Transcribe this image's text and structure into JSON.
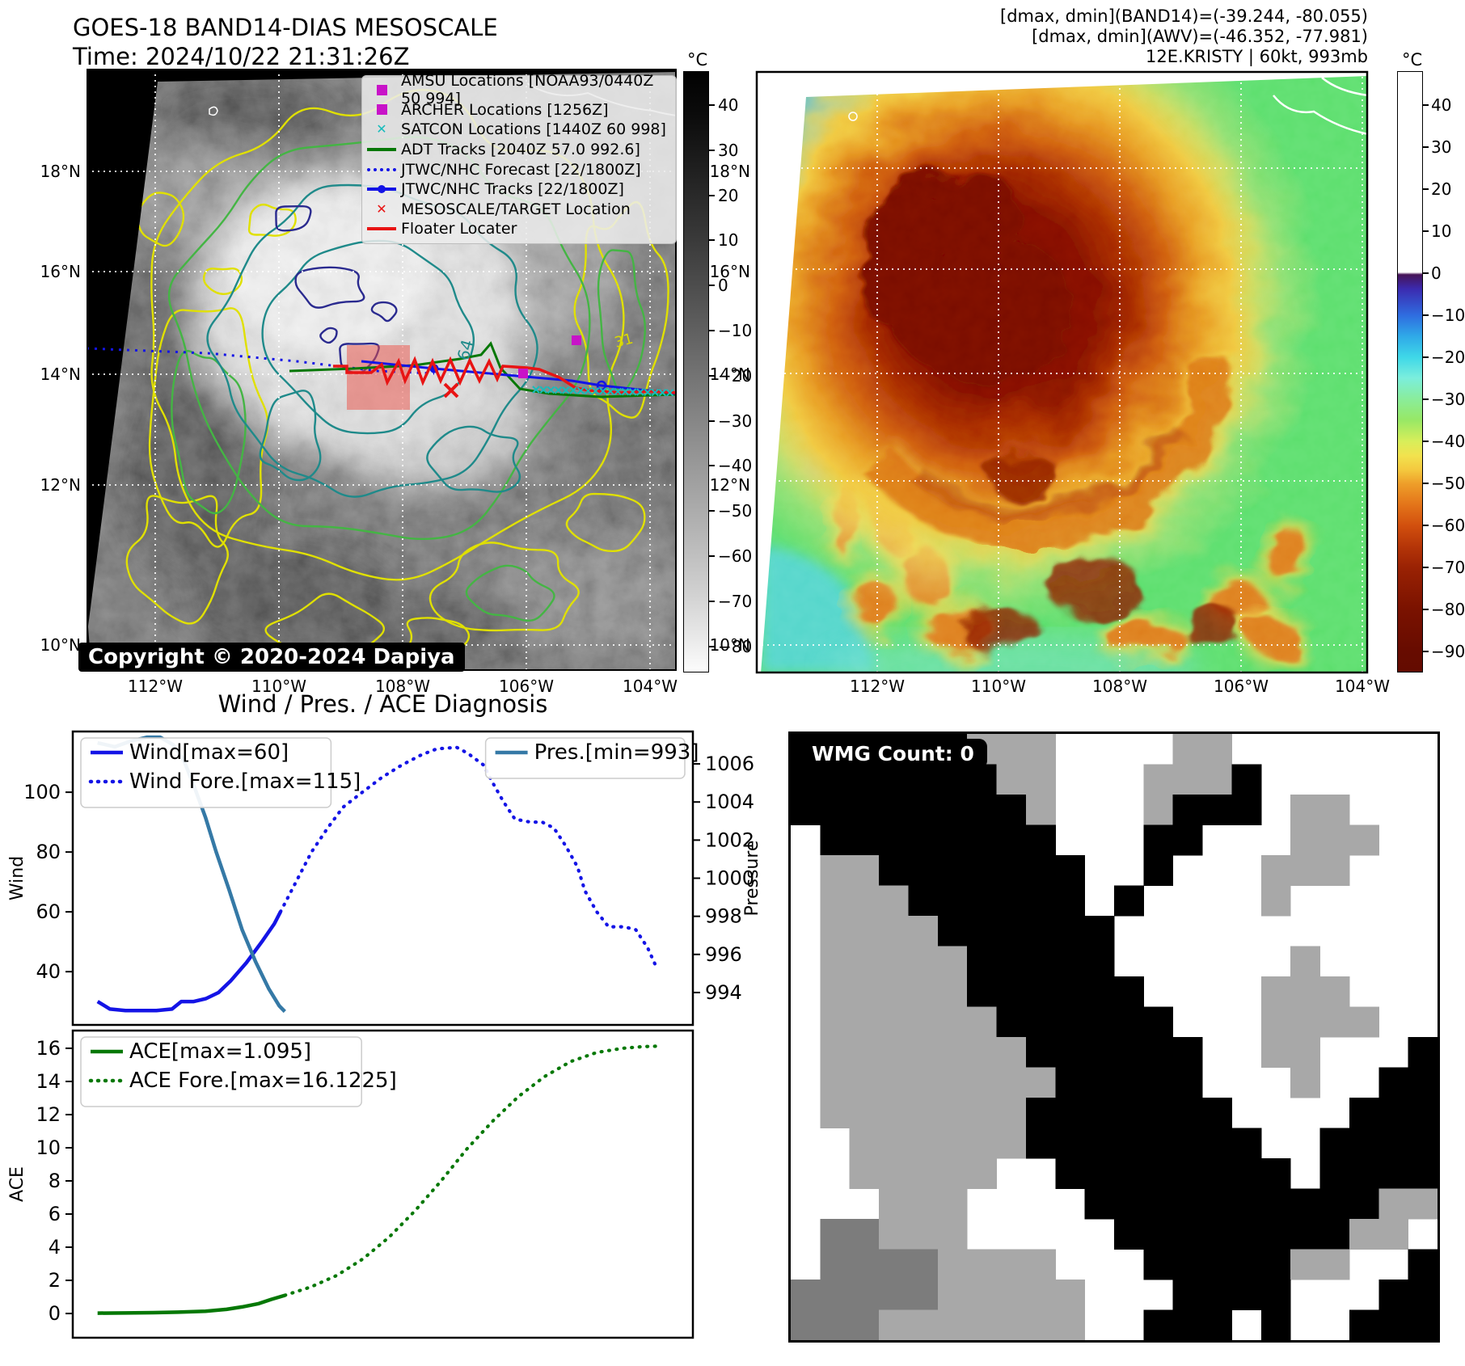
{
  "header_left": {
    "line1": "GOES-18 BAND14-DIAS MESOSCALE",
    "line2": "Time: 2024/10/22 21:31:26Z"
  },
  "header_right": {
    "line1": "[dmax, dmin](BAND14)=(-39.244, -80.055)",
    "line2": "[dmax, dmin](AWV)=(-46.352, -77.981)",
    "line3": "12E.KRISTY | 60kt, 993mb"
  },
  "map_left": {
    "copyright": "Copyright © 2020-2024 Dapiya",
    "lat_ticks": [
      "18°N",
      "16°N",
      "14°N",
      "12°N",
      "10°N"
    ],
    "lon_ticks": [
      "112°W",
      "110°W",
      "108°W",
      "106°W",
      "104°W"
    ],
    "contour_labels": [
      "64",
      "31"
    ],
    "colorbar": {
      "unit": "°C",
      "ticks": [
        "40",
        "30",
        "20",
        "10",
        "0",
        "−10",
        "−20",
        "−30",
        "−40",
        "−50",
        "−60",
        "−70",
        "−80"
      ]
    },
    "legend": [
      {
        "marker": "square",
        "color": "#c813c8",
        "label": "AMSU Locations [NOAA93/0440Z 50 994]"
      },
      {
        "marker": "square",
        "color": "#c813c8",
        "label": "ARCHER Locations [1256Z]"
      },
      {
        "marker": "cross",
        "color": "#17bcbc",
        "label": "SATCON Locations [1440Z 60 998]"
      },
      {
        "marker": "line",
        "color": "#067806",
        "label": "ADT Tracks [2040Z 57.0 992.6]"
      },
      {
        "marker": "dotted",
        "color": "#1414e6",
        "label": "JTWC/NHC Forecast [22/1800Z]"
      },
      {
        "marker": "line-dot",
        "color": "#1414e6",
        "label": "JTWC/NHC Tracks [22/1800Z]"
      },
      {
        "marker": "cross",
        "color": "#e81414",
        "label": "MESOSCALE/TARGET Location"
      },
      {
        "marker": "line",
        "color": "#e81414",
        "label": "Floater Locater"
      }
    ]
  },
  "map_right": {
    "lat_ticks": [
      "18°N",
      "16°N",
      "14°N",
      "12°N",
      "10°N"
    ],
    "lon_ticks": [
      "112°W",
      "110°W",
      "108°W",
      "106°W",
      "104°W"
    ],
    "colorbar": {
      "unit": "°C",
      "ticks": [
        "40",
        "30",
        "20",
        "10",
        "0",
        "−10",
        "−20",
        "−30",
        "−40",
        "−50",
        "−60",
        "−70",
        "−80",
        "−90"
      ]
    }
  },
  "charts_title": "Wind / Pres. / ACE Diagnosis",
  "wmg": {
    "label": "WMG Count: 0"
  },
  "chart_data": [
    {
      "type": "line",
      "title": "Wind / Pres. / ACE Diagnosis",
      "xlabel": "",
      "ylabel": "Wind",
      "ylabel_right": "Pressure",
      "ylim": [
        22.2,
        120.3
      ],
      "ylim_right": [
        992.3,
        1007.7
      ],
      "yticks": [
        40,
        60,
        80,
        100
      ],
      "yticks_right": [
        994,
        996,
        998,
        1000,
        1002,
        1004,
        1006
      ],
      "grid": false,
      "series": [
        {
          "name": "Wind[max=60]",
          "color": "#1414e6",
          "style": "solid",
          "axis": "left",
          "x": [
            0.04,
            0.06,
            0.085,
            0.11,
            0.135,
            0.16,
            0.175,
            0.195,
            0.215,
            0.235,
            0.255,
            0.28,
            0.305,
            0.325,
            0.335
          ],
          "y": [
            30,
            27.5,
            27,
            27,
            27,
            27.5,
            30,
            30,
            31,
            33,
            37,
            43,
            50,
            56,
            60
          ]
        },
        {
          "name": "Wind Fore.[max=115]",
          "color": "#1414e6",
          "style": "dotted",
          "axis": "left",
          "x": [
            0.335,
            0.36,
            0.385,
            0.411,
            0.436,
            0.467,
            0.499,
            0.53,
            0.562,
            0.587,
            0.619,
            0.637,
            0.663,
            0.675,
            0.694,
            0.713,
            0.738,
            0.757,
            0.776,
            0.795,
            0.814,
            0.826,
            0.845,
            0.864,
            0.889,
            0.908,
            0.927,
            0.94
          ],
          "y": [
            60,
            70,
            80,
            88,
            95,
            100,
            105,
            109,
            112.5,
            114.5,
            115,
            113,
            109,
            104,
            97,
            91,
            90,
            90,
            88,
            82,
            75,
            67,
            60,
            55,
            55,
            54,
            48,
            42
          ]
        },
        {
          "name": "Pres.[min=993]",
          "color": "#3579a6",
          "style": "solid",
          "axis": "right",
          "x": [
            0.04,
            0.068,
            0.094,
            0.12,
            0.141,
            0.162,
            0.179,
            0.196,
            0.214,
            0.231,
            0.252,
            0.273,
            0.295,
            0.316,
            0.333,
            0.342
          ],
          "y": [
            1007.1,
            1006.9,
            1007.2,
            1007.4,
            1007.4,
            1007.0,
            1006.2,
            1004.8,
            1003.2,
            1001.4,
            999.4,
            997.3,
            995.6,
            994.2,
            993.3,
            993.0
          ]
        }
      ],
      "legend_boxes": [
        {
          "pos": "top-left",
          "items": [
            0,
            1
          ]
        },
        {
          "pos": "top-right",
          "items": [
            2
          ]
        }
      ]
    },
    {
      "type": "line",
      "title": "",
      "xlabel": "",
      "ylabel": "ACE",
      "ylim": [
        -1.46,
        17.07
      ],
      "yticks": [
        0,
        2,
        4,
        6,
        8,
        10,
        12,
        14,
        16
      ],
      "grid": false,
      "series": [
        {
          "name": "ACE[max=1.095]",
          "color": "#067806",
          "style": "solid",
          "axis": "left",
          "x": [
            0.04,
            0.085,
            0.13,
            0.17,
            0.214,
            0.248,
            0.273,
            0.3,
            0.32,
            0.342
          ],
          "y": [
            0.02,
            0.03,
            0.05,
            0.08,
            0.14,
            0.25,
            0.4,
            0.6,
            0.85,
            1.095
          ]
        },
        {
          "name": "ACE Fore.[max=16.1225]",
          "color": "#067806",
          "style": "dotted",
          "axis": "left",
          "x": [
            0.342,
            0.384,
            0.426,
            0.468,
            0.51,
            0.552,
            0.594,
            0.635,
            0.677,
            0.719,
            0.761,
            0.803,
            0.845,
            0.887,
            0.919,
            0.94
          ],
          "y": [
            1.095,
            1.6,
            2.3,
            3.3,
            4.6,
            6.2,
            8.0,
            9.9,
            11.6,
            13.1,
            14.3,
            15.2,
            15.75,
            16.0,
            16.1,
            16.1225
          ]
        }
      ],
      "legend_boxes": [
        {
          "pos": "top-left",
          "items": [
            0,
            1
          ]
        }
      ]
    }
  ]
}
